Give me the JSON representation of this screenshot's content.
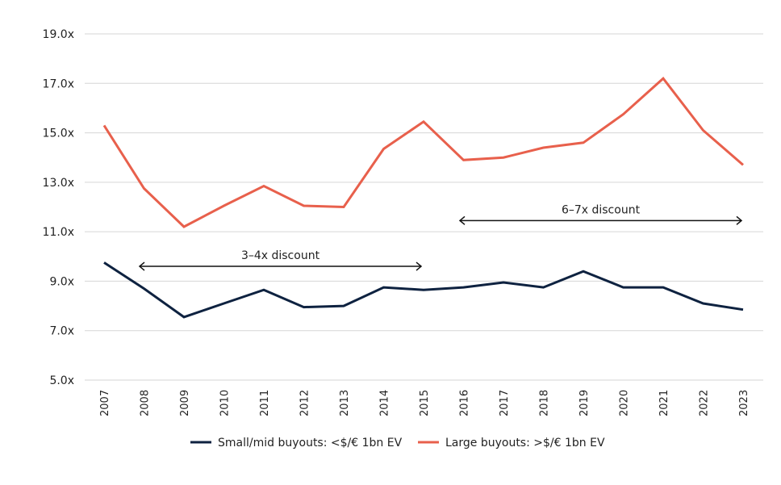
{
  "chart_data": {
    "type": "line",
    "title": "",
    "xlabel": "",
    "ylabel": "",
    "x": [
      "2007",
      "2008",
      "2009",
      "2010",
      "2011",
      "2012",
      "2013",
      "2014",
      "2015",
      "2016",
      "2017",
      "2018",
      "2019",
      "2020",
      "2021",
      "2022",
      "2023"
    ],
    "ylim": [
      5.0,
      19.0
    ],
    "yticks": [
      5.0,
      7.0,
      9.0,
      11.0,
      13.0,
      15.0,
      17.0,
      19.0
    ],
    "ytick_labels": [
      "5.0x",
      "7.0x",
      "9.0x",
      "11.0x",
      "13.0x",
      "15.0x",
      "17.0x",
      "19.0x"
    ],
    "grid": true,
    "legend_position": "bottom",
    "series": [
      {
        "name": "Small/mid buyouts: <$/€ 1bn EV",
        "color": "#0e2240",
        "values": [
          9.75,
          8.7,
          7.55,
          8.1,
          8.65,
          7.95,
          8.0,
          8.75,
          8.65,
          8.75,
          8.95,
          8.75,
          9.4,
          8.75,
          8.75,
          8.1,
          7.85
        ]
      },
      {
        "name": "Large buyouts: >$/€ 1bn EV",
        "color": "#e8604c",
        "values": [
          15.3,
          12.75,
          11.2,
          12.05,
          12.85,
          12.05,
          12.0,
          14.35,
          15.45,
          13.9,
          14.0,
          14.4,
          14.6,
          15.75,
          17.2,
          15.1,
          13.7
        ]
      }
    ],
    "annotations": [
      {
        "text": "3–4x discount",
        "from": "2008",
        "to": "2015",
        "y": 9.6
      },
      {
        "text": "6–7x discount",
        "from": "2016",
        "to": "2023",
        "y": 11.45
      }
    ]
  }
}
